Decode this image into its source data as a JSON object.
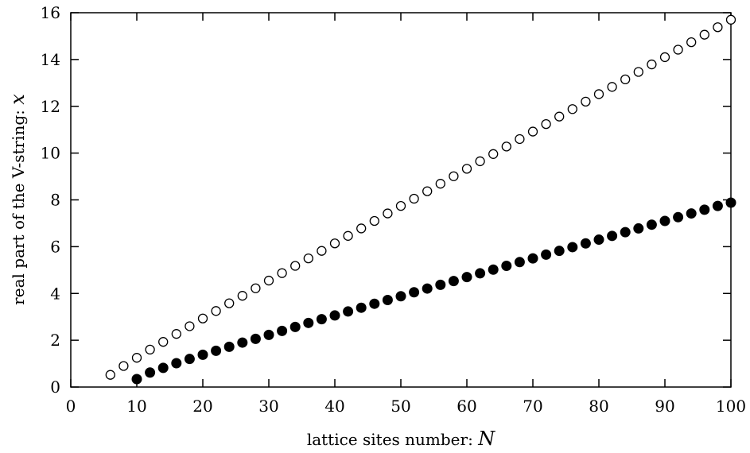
{
  "chart_data": {
    "type": "scatter",
    "xlabel": "lattice sites number: ",
    "xlabel_symbol": "N",
    "ylabel": "real part of the V-string: ",
    "ylabel_symbol": "x",
    "xlim": [
      0,
      100
    ],
    "ylim": [
      0,
      16
    ],
    "xticks": [
      0,
      10,
      20,
      30,
      40,
      50,
      60,
      70,
      80,
      90,
      100
    ],
    "yticks": [
      0,
      2,
      4,
      6,
      8,
      10,
      12,
      14,
      16
    ],
    "grid": false,
    "legend": "none",
    "series": [
      {
        "marker": "open-circle",
        "color": "#000000",
        "points": [
          [
            6,
            0.52
          ],
          [
            8,
            0.9
          ],
          [
            10,
            1.25
          ],
          [
            12,
            1.6
          ],
          [
            14,
            1.93
          ],
          [
            16,
            2.27
          ],
          [
            18,
            2.6
          ],
          [
            20,
            2.93
          ],
          [
            22,
            3.25
          ],
          [
            24,
            3.58
          ],
          [
            26,
            3.9
          ],
          [
            28,
            4.22
          ],
          [
            30,
            4.55
          ],
          [
            32,
            4.87
          ],
          [
            34,
            5.18
          ],
          [
            36,
            5.5
          ],
          [
            38,
            5.82
          ],
          [
            40,
            6.14
          ],
          [
            42,
            6.46
          ],
          [
            44,
            6.78
          ],
          [
            46,
            7.1
          ],
          [
            48,
            7.42
          ],
          [
            50,
            7.74
          ],
          [
            52,
            8.05
          ],
          [
            54,
            8.37
          ],
          [
            56,
            8.69
          ],
          [
            58,
            9.01
          ],
          [
            60,
            9.33
          ],
          [
            62,
            9.65
          ],
          [
            64,
            9.96
          ],
          [
            66,
            10.28
          ],
          [
            68,
            10.6
          ],
          [
            70,
            10.92
          ],
          [
            72,
            11.24
          ],
          [
            74,
            11.56
          ],
          [
            76,
            11.88
          ],
          [
            78,
            12.2
          ],
          [
            80,
            12.52
          ],
          [
            82,
            12.83
          ],
          [
            84,
            13.15
          ],
          [
            86,
            13.47
          ],
          [
            88,
            13.79
          ],
          [
            90,
            14.1
          ],
          [
            92,
            14.42
          ],
          [
            94,
            14.74
          ],
          [
            96,
            15.06
          ],
          [
            98,
            15.38
          ],
          [
            100,
            15.7
          ]
        ]
      },
      {
        "marker": "filled-circle",
        "color": "#000000",
        "points": [
          [
            10,
            0.34
          ],
          [
            12,
            0.62
          ],
          [
            14,
            0.82
          ],
          [
            16,
            1.02
          ],
          [
            18,
            1.2
          ],
          [
            20,
            1.38
          ],
          [
            22,
            1.55
          ],
          [
            24,
            1.72
          ],
          [
            26,
            1.9
          ],
          [
            28,
            2.06
          ],
          [
            30,
            2.23
          ],
          [
            32,
            2.4
          ],
          [
            34,
            2.57
          ],
          [
            36,
            2.74
          ],
          [
            38,
            2.9
          ],
          [
            40,
            3.06
          ],
          [
            42,
            3.23
          ],
          [
            44,
            3.39
          ],
          [
            46,
            3.56
          ],
          [
            48,
            3.72
          ],
          [
            50,
            3.88
          ],
          [
            52,
            4.05
          ],
          [
            54,
            4.21
          ],
          [
            56,
            4.37
          ],
          [
            58,
            4.53
          ],
          [
            60,
            4.7
          ],
          [
            62,
            4.86
          ],
          [
            64,
            5.02
          ],
          [
            66,
            5.18
          ],
          [
            68,
            5.34
          ],
          [
            70,
            5.5
          ],
          [
            72,
            5.66
          ],
          [
            74,
            5.82
          ],
          [
            76,
            5.98
          ],
          [
            78,
            6.14
          ],
          [
            80,
            6.3
          ],
          [
            82,
            6.46
          ],
          [
            84,
            6.62
          ],
          [
            86,
            6.78
          ],
          [
            88,
            6.94
          ],
          [
            90,
            7.1
          ],
          [
            92,
            7.26
          ],
          [
            94,
            7.42
          ],
          [
            96,
            7.58
          ],
          [
            98,
            7.74
          ],
          [
            100,
            7.88
          ]
        ]
      }
    ]
  }
}
